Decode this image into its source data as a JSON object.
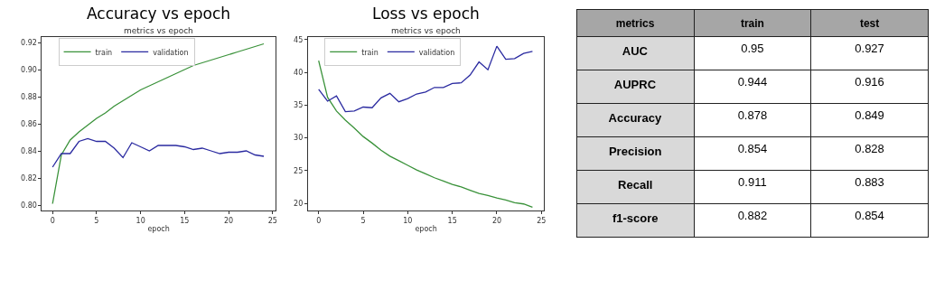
{
  "chart_data": [
    {
      "type": "line",
      "title": "Accuracy vs epoch",
      "subtitle": "metrics vs epoch",
      "xlabel": "epoch",
      "legend": "top left",
      "grid": false,
      "x": [
        0,
        1,
        2,
        3,
        4,
        5,
        6,
        7,
        8,
        9,
        10,
        11,
        12,
        13,
        14,
        15,
        16,
        17,
        18,
        19,
        20,
        21,
        22,
        23,
        24
      ],
      "xlim": [
        -1.2,
        25.3
      ],
      "xticks": [
        0,
        5,
        10,
        15,
        20,
        25
      ],
      "ylim": [
        0.796,
        0.924
      ],
      "yticks": [
        {
          "value": 0.8,
          "label": "0.80"
        },
        0.82,
        0.84,
        0.86,
        0.88,
        {
          "value": 0.9,
          "label": "0.90"
        },
        0.92
      ],
      "series": [
        {
          "name": "train",
          "color": "#3a923a",
          "values": [
            0.801,
            0.837,
            0.848,
            0.854,
            0.859,
            0.864,
            0.868,
            0.873,
            0.877,
            0.881,
            0.885,
            0.888,
            0.891,
            0.894,
            0.897,
            0.9,
            0.903,
            0.905,
            0.907,
            0.909,
            0.911,
            0.913,
            0.915,
            0.917,
            0.919
          ]
        },
        {
          "name": "validation",
          "color": "#2a2aa0",
          "values": [
            0.828,
            0.838,
            0.838,
            0.847,
            0.849,
            0.847,
            0.847,
            0.842,
            0.835,
            0.846,
            0.843,
            0.84,
            0.844,
            0.844,
            0.844,
            0.843,
            0.841,
            0.842,
            0.84,
            0.838,
            0.839,
            0.839,
            0.84,
            0.837,
            0.836
          ]
        }
      ]
    },
    {
      "type": "line",
      "title": "Loss vs epoch",
      "subtitle": "metrics vs epoch",
      "xlabel": "epoch",
      "legend": "top left",
      "grid": false,
      "x": [
        0,
        1,
        2,
        3,
        4,
        5,
        6,
        7,
        8,
        9,
        10,
        11,
        12,
        13,
        14,
        15,
        16,
        17,
        18,
        19,
        20,
        21,
        22,
        23,
        24
      ],
      "xlim": [
        -1.2,
        25.3
      ],
      "xticks": [
        0,
        5,
        10,
        15,
        20,
        25
      ],
      "ylim": [
        18.9,
        45.4
      ],
      "yticks": [
        20,
        25,
        30,
        35,
        40,
        45
      ],
      "series": [
        {
          "name": "train",
          "color": "#3a923a",
          "values": [
            41.8,
            36.2,
            34.1,
            32.7,
            31.5,
            30.2,
            29.2,
            28.1,
            27.2,
            26.5,
            25.8,
            25.1,
            24.5,
            23.9,
            23.4,
            22.9,
            22.5,
            22.0,
            21.5,
            21.2,
            20.8,
            20.5,
            20.1,
            19.9,
            19.4
          ]
        },
        {
          "name": "validation",
          "color": "#2a2aa0",
          "values": [
            37.4,
            35.6,
            36.4,
            34.0,
            34.1,
            34.7,
            34.6,
            36.1,
            36.8,
            35.5,
            36.0,
            36.7,
            37.0,
            37.7,
            37.7,
            38.3,
            38.4,
            39.6,
            41.6,
            40.4,
            44.0,
            42.0,
            42.1,
            42.9,
            43.2
          ]
        }
      ]
    },
    {
      "type": "other",
      "categories": [
        "metrics",
        "train",
        "test"
      ],
      "y_categories": [
        "AUC",
        "AUPRC",
        "Accuracy",
        "Precision",
        "Recall",
        "f1-score"
      ],
      "cell_labels": [
        [
          "0.95",
          "0.927"
        ],
        [
          "0.944",
          "0.916"
        ],
        [
          "0.878",
          "0.849"
        ],
        [
          "0.854",
          "0.828"
        ],
        [
          "0.911",
          "0.883"
        ],
        [
          "0.882",
          "0.854"
        ]
      ]
    }
  ]
}
